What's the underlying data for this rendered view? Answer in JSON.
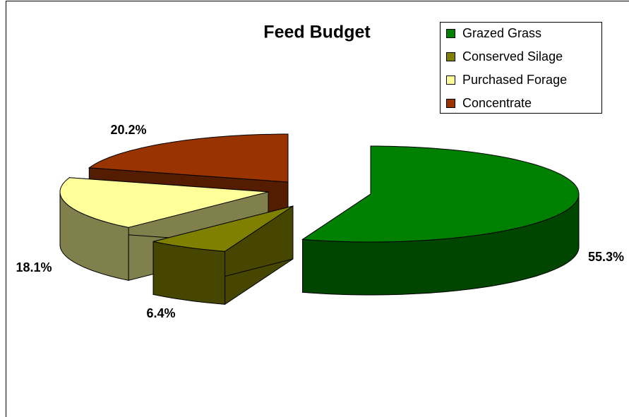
{
  "chart_data": {
    "type": "pie3d",
    "title": "Feed Budget",
    "categories": [
      "Grazed Grass",
      "Conserved Silage",
      "Purchased Forage",
      "Concentrate"
    ],
    "values": [
      55.3,
      6.4,
      18.1,
      20.2
    ],
    "value_labels": [
      "55.3%",
      "6.4%",
      "18.1%",
      "20.2%"
    ],
    "colors": [
      "#008000",
      "#808000",
      "#ffff99",
      "#993300"
    ],
    "legend": "top-right"
  }
}
